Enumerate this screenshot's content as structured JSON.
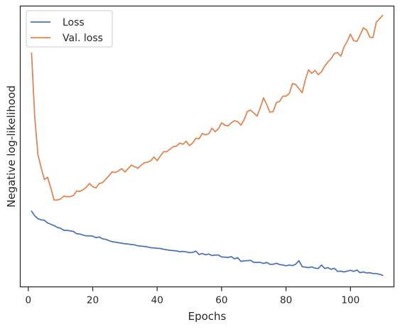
{
  "chart_data": {
    "type": "line",
    "title": "",
    "xlabel": "Epochs",
    "ylabel": "Negative log-likelihood",
    "xlim": [
      -2.5,
      113.5
    ],
    "ylim": [
      0,
      1
    ],
    "xticks": [
      0,
      20,
      40,
      60,
      80,
      100
    ],
    "yticks": [],
    "grid": false,
    "legend": "top-left",
    "series": [
      {
        "name": "Loss",
        "color": "#4c72b0",
        "x": [
          1,
          2,
          3,
          4,
          5,
          6,
          7,
          8,
          9,
          10,
          11,
          12,
          13,
          14,
          15,
          16,
          17,
          18,
          19,
          20,
          21,
          22,
          23,
          24,
          25,
          26,
          27,
          28,
          29,
          30,
          31,
          32,
          33,
          34,
          35,
          36,
          37,
          38,
          39,
          40,
          41,
          42,
          43,
          44,
          45,
          46,
          47,
          48,
          49,
          50,
          51,
          52,
          53,
          54,
          55,
          56,
          57,
          58,
          59,
          60,
          61,
          62,
          63,
          64,
          65,
          66,
          67,
          68,
          69,
          70,
          71,
          72,
          73,
          74,
          75,
          76,
          77,
          78,
          79,
          80,
          81,
          82,
          83,
          84,
          85,
          86,
          87,
          88,
          89,
          90,
          91,
          92,
          93,
          94,
          95,
          96,
          97,
          98,
          99,
          100,
          101,
          102,
          103,
          104,
          105,
          106,
          107,
          108,
          109,
          110
        ],
        "values": [
          0.273,
          0.255,
          0.244,
          0.24,
          0.238,
          0.228,
          0.223,
          0.218,
          0.211,
          0.208,
          0.2,
          0.2,
          0.198,
          0.196,
          0.187,
          0.186,
          0.182,
          0.179,
          0.179,
          0.178,
          0.172,
          0.175,
          0.168,
          0.166,
          0.161,
          0.157,
          0.155,
          0.153,
          0.151,
          0.149,
          0.148,
          0.146,
          0.145,
          0.141,
          0.14,
          0.139,
          0.137,
          0.134,
          0.133,
          0.132,
          0.131,
          0.128,
          0.126,
          0.124,
          0.123,
          0.122,
          0.119,
          0.12,
          0.118,
          0.115,
          0.116,
          0.121,
          0.108,
          0.112,
          0.107,
          0.11,
          0.104,
          0.106,
          0.106,
          0.099,
          0.098,
          0.097,
          0.1,
          0.092,
          0.096,
          0.082,
          0.084,
          0.085,
          0.086,
          0.078,
          0.078,
          0.078,
          0.074,
          0.078,
          0.071,
          0.071,
          0.075,
          0.07,
          0.068,
          0.065,
          0.068,
          0.066,
          0.071,
          0.085,
          0.062,
          0.06,
          0.058,
          0.061,
          0.056,
          0.055,
          0.068,
          0.055,
          0.058,
          0.052,
          0.056,
          0.044,
          0.045,
          0.042,
          0.045,
          0.048,
          0.044,
          0.049,
          0.039,
          0.042,
          0.038,
          0.039,
          0.036,
          0.036,
          0.033,
          0.029
        ]
      },
      {
        "name": "Val. loss",
        "color": "#dd8452",
        "x": [
          1,
          2,
          3,
          4,
          5,
          6,
          7,
          8,
          9,
          10,
          11,
          12,
          13,
          14,
          15,
          16,
          17,
          18,
          19,
          20,
          21,
          22,
          23,
          24,
          25,
          26,
          27,
          28,
          29,
          30,
          31,
          32,
          33,
          34,
          35,
          36,
          37,
          38,
          39,
          40,
          41,
          42,
          43,
          44,
          45,
          46,
          47,
          48,
          49,
          50,
          51,
          52,
          53,
          54,
          55,
          56,
          57,
          58,
          59,
          60,
          61,
          62,
          63,
          64,
          65,
          66,
          67,
          68,
          69,
          70,
          71,
          72,
          73,
          74,
          75,
          76,
          77,
          78,
          79,
          80,
          81,
          82,
          83,
          84,
          85,
          86,
          87,
          88,
          89,
          90,
          91,
          92,
          93,
          94,
          95,
          96,
          97,
          98,
          99,
          100,
          101,
          102,
          103,
          104,
          105,
          106,
          107,
          108,
          109,
          110
        ],
        "values": [
          0.874,
          0.63,
          0.488,
          0.437,
          0.393,
          0.402,
          0.36,
          0.315,
          0.315,
          0.319,
          0.33,
          0.328,
          0.328,
          0.332,
          0.35,
          0.348,
          0.354,
          0.364,
          0.378,
          0.366,
          0.361,
          0.378,
          0.381,
          0.394,
          0.407,
          0.422,
          0.42,
          0.426,
          0.435,
          0.422,
          0.435,
          0.448,
          0.442,
          0.436,
          0.447,
          0.457,
          0.459,
          0.464,
          0.479,
          0.465,
          0.483,
          0.499,
          0.499,
          0.509,
          0.518,
          0.52,
          0.532,
          0.527,
          0.539,
          0.522,
          0.532,
          0.55,
          0.548,
          0.568,
          0.563,
          0.567,
          0.588,
          0.575,
          0.586,
          0.609,
          0.6,
          0.597,
          0.609,
          0.617,
          0.613,
          0.6,
          0.62,
          0.652,
          0.657,
          0.646,
          0.634,
          0.666,
          0.704,
          0.678,
          0.649,
          0.652,
          0.686,
          0.69,
          0.71,
          0.71,
          0.72,
          0.758,
          0.754,
          0.739,
          0.723,
          0.773,
          0.81,
          0.797,
          0.808,
          0.792,
          0.803,
          0.824,
          0.84,
          0.853,
          0.872,
          0.876,
          0.862,
          0.897,
          0.919,
          0.946,
          0.921,
          0.918,
          0.943,
          0.97,
          0.962,
          0.934,
          0.933,
          0.991,
          1.004,
          1.017
        ]
      }
    ]
  }
}
